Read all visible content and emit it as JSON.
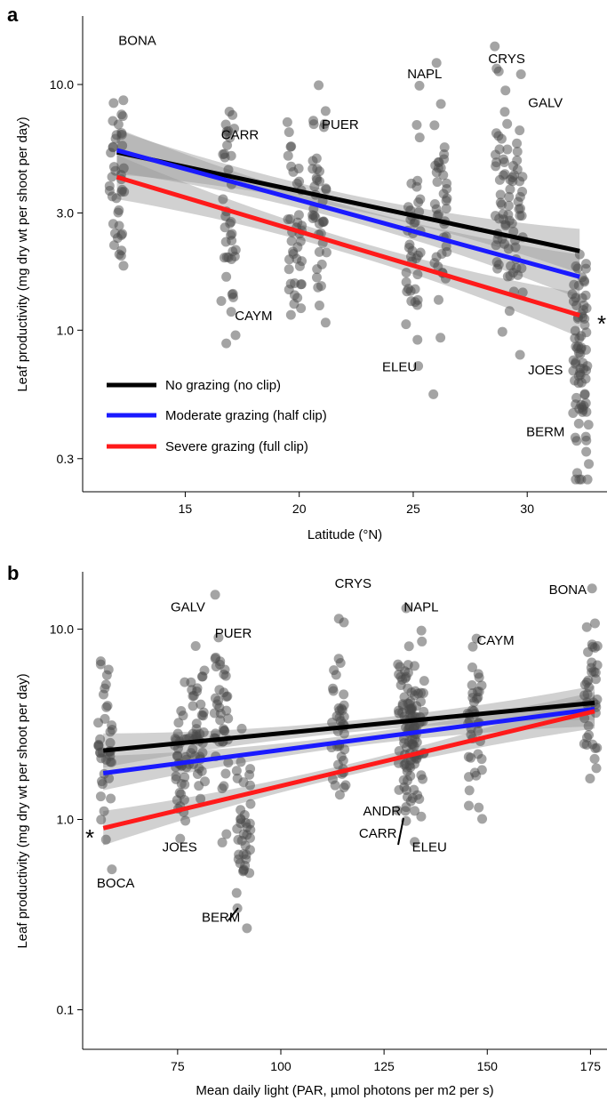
{
  "chart_data": [
    {
      "panel": "a",
      "type": "scatter",
      "xlabel": "Latitude (°N)",
      "ylabel": "Leaf productivity (mg dry wt per shoot per day)",
      "xlim": [
        10.5,
        33.5
      ],
      "ylim": [
        0.22,
        19
      ],
      "yscale": "log",
      "xticks": [
        15,
        20,
        25,
        30
      ],
      "yticks": [
        0.3,
        1.0,
        3.0,
        10.0
      ],
      "ytick_labels": [
        "0.3",
        "1.0",
        "3.0",
        "10.0"
      ],
      "grid": false,
      "legend_position": "bottom-left",
      "series": [
        {
          "name": "No grazing (no clip)",
          "color": "#000000",
          "x": [
            12.0,
            32.3
          ],
          "y": [
            5.3,
            2.1
          ]
        },
        {
          "name": "Moderate grazing (half clip)",
          "color": "#1a1aff",
          "x": [
            12.0,
            32.3
          ],
          "y": [
            5.4,
            1.65
          ]
        },
        {
          "name": "Severe grazing (full clip)",
          "color": "#ff1a1a",
          "x": [
            12.0,
            32.3
          ],
          "y": [
            4.2,
            1.15
          ]
        }
      ],
      "sites": [
        {
          "label": "BONA",
          "x": 12.0,
          "y": 4.5
        },
        {
          "label": "CARR",
          "x": 16.9,
          "y": 3.0
        },
        {
          "label": "CAYM",
          "x": 19.8,
          "y": 2.4
        },
        {
          "label": "PUER",
          "x": 20.9,
          "y": 3.3
        },
        {
          "label": "ELEU",
          "x": 25.0,
          "y": 2.3
        },
        {
          "label": "NAPL",
          "x": 26.2,
          "y": 3.2
        },
        {
          "label": "CRYS",
          "x": 28.9,
          "y": 3.6
        },
        {
          "label": "GALV",
          "x": 29.5,
          "y": 2.7
        },
        {
          "label": "JOES",
          "x": 32.3,
          "y": 0.85
        },
        {
          "label": "BERM",
          "x": 32.4,
          "y": 0.6
        }
      ],
      "site_labels": [
        {
          "text": "BONA",
          "x": 12.9,
          "y": 14.5
        },
        {
          "text": "CARR",
          "x": 17.4,
          "y": 6.0
        },
        {
          "text": "CAYM",
          "x": 18.0,
          "y": 1.1
        },
        {
          "text": "PUER",
          "x": 21.8,
          "y": 6.6
        },
        {
          "text": "ELEU",
          "x": 24.4,
          "y": 0.68
        },
        {
          "text": "NAPL",
          "x": 25.5,
          "y": 10.6
        },
        {
          "text": "CRYS",
          "x": 29.1,
          "y": 12.2
        },
        {
          "text": "GALV",
          "x": 30.8,
          "y": 8.1
        },
        {
          "text": "JOES",
          "x": 30.8,
          "y": 0.66
        },
        {
          "text": "BERM",
          "x": 30.8,
          "y": 0.37
        }
      ],
      "annotation": "*"
    },
    {
      "panel": "b",
      "type": "scatter",
      "xlabel": "Mean daily light (PAR, µmol photons per m2 per s)",
      "ylabel": "Leaf productivity (mg dry wt per shoot per day)",
      "xlim": [
        52,
        179
      ],
      "ylim": [
        0.062,
        20
      ],
      "yscale": "log",
      "xticks": [
        75,
        100,
        125,
        150,
        175
      ],
      "yticks": [
        0.1,
        1.0,
        10.0
      ],
      "ytick_labels": [
        "0.1",
        "1.0",
        "10.0"
      ],
      "grid": false,
      "series": [
        {
          "name": "No grazing (no clip)",
          "color": "#000000",
          "x": [
            57,
            176
          ],
          "y": [
            2.3,
            4.1
          ]
        },
        {
          "name": "Moderate grazing (half clip)",
          "color": "#1a1aff",
          "x": [
            57,
            176
          ],
          "y": [
            1.75,
            3.8
          ]
        },
        {
          "name": "Severe grazing (full clip)",
          "color": "#ff1a1a",
          "x": [
            57,
            176
          ],
          "y": [
            0.9,
            3.7
          ]
        }
      ],
      "sites": [
        {
          "label": "BOCA",
          "x": 57.5,
          "y": 2.0
        },
        {
          "label": "JOES",
          "x": 76.0,
          "y": 2.0
        },
        {
          "label": "GALV",
          "x": 80.0,
          "y": 2.8
        },
        {
          "label": "PUER",
          "x": 85.5,
          "y": 3.2
        },
        {
          "label": "BERM",
          "x": 91.0,
          "y": 0.9
        },
        {
          "label": "CRYS",
          "x": 114.0,
          "y": 3.2
        },
        {
          "label": "ANDR",
          "x": 130.0,
          "y": 2.8
        },
        {
          "label": "CARR",
          "x": 131.5,
          "y": 2.6
        },
        {
          "label": "ELEU",
          "x": 133.0,
          "y": 3.0
        },
        {
          "label": "CAYM",
          "x": 147.0,
          "y": 2.9
        },
        {
          "label": "BONA",
          "x": 175.0,
          "y": 4.5
        }
      ],
      "site_labels": [
        {
          "text": "GALV",
          "x": 77.5,
          "y": 12.4
        },
        {
          "text": "PUER",
          "x": 88.5,
          "y": 9.0
        },
        {
          "text": "CRYS",
          "x": 117.5,
          "y": 16.5
        },
        {
          "text": "NAPL",
          "x": 134.0,
          "y": 12.4
        },
        {
          "text": "CAYM",
          "x": 152.0,
          "y": 8.3
        },
        {
          "text": "BONA",
          "x": 169.5,
          "y": 15.3
        },
        {
          "text": "ANDR",
          "x": 124.5,
          "y": 1.05
        },
        {
          "text": "CARR",
          "x": 123.5,
          "y": 0.8
        },
        {
          "text": "ELEU",
          "x": 136.0,
          "y": 0.68
        },
        {
          "text": "JOES",
          "x": 75.5,
          "y": 0.68
        },
        {
          "text": "BOCA",
          "x": 60.0,
          "y": 0.44
        },
        {
          "text": "BERM",
          "x": 85.5,
          "y": 0.29
        }
      ],
      "annotation": "*"
    }
  ],
  "legend": [
    {
      "label": "No grazing (no clip)",
      "color": "#000000"
    },
    {
      "label": "Moderate grazing (half clip)",
      "color": "#1a1aff"
    },
    {
      "label": "Severe grazing (full clip)",
      "color": "#ff1a1a"
    }
  ],
  "panel_letters": [
    "a",
    "b"
  ]
}
